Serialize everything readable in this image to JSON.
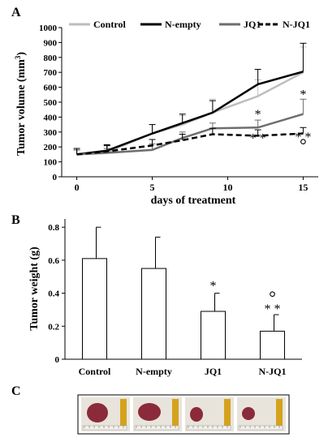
{
  "panel_labels": {
    "a": "A",
    "b": "B",
    "c": "C"
  },
  "chart_data": [
    {
      "type": "line",
      "ylabel_main": "Tumor volume (mm",
      "ylabel_sup": "3",
      "ylabel_end": ")",
      "xlabel": "days of treatment",
      "ylim": [
        0,
        1000
      ],
      "xlim": [
        -1,
        16
      ],
      "yticks": [
        0,
        100,
        200,
        300,
        400,
        500,
        600,
        700,
        800,
        900,
        1000
      ],
      "xticks": [
        0,
        5,
        10,
        15
      ],
      "series": [
        {
          "name": "Control",
          "color": "#bdbdbd",
          "dash": "solid",
          "x": [
            0,
            2,
            5,
            7,
            9,
            12,
            15
          ],
          "y": [
            150,
            165,
            290,
            350,
            430,
            540,
            700
          ],
          "err": [
            30,
            40,
            60,
            60,
            90,
            110,
            170
          ]
        },
        {
          "name": "N-empty",
          "color": "#000000",
          "dash": "solid",
          "x": [
            0,
            2,
            5,
            7,
            9,
            12,
            15
          ],
          "y": [
            150,
            175,
            290,
            360,
            430,
            620,
            705
          ],
          "err": [
            30,
            40,
            60,
            60,
            80,
            100,
            190
          ]
        },
        {
          "name": "JQ1",
          "color": "#6e6e6e",
          "dash": "solid",
          "x": [
            0,
            2,
            5,
            7,
            9,
            12,
            15
          ],
          "y": [
            150,
            160,
            180,
            260,
            325,
            330,
            420
          ],
          "err": [
            30,
            30,
            40,
            40,
            35,
            50,
            100
          ]
        },
        {
          "name": "N-JQ1",
          "color": "#000000",
          "dash": "dashed",
          "x": [
            0,
            2,
            5,
            7,
            9,
            12,
            15
          ],
          "y": [
            150,
            170,
            210,
            245,
            285,
            275,
            290
          ],
          "err": [
            40,
            40,
            40,
            40,
            40,
            40,
            40
          ]
        }
      ],
      "annotations": [
        {
          "text": "*",
          "x": 12,
          "y": 390
        },
        {
          "text": "* *",
          "x": 12,
          "y": 230
        },
        {
          "text": "*",
          "x": 15,
          "y": 525
        },
        {
          "text": "* *",
          "x": 15,
          "y": 240
        },
        {
          "text": "°",
          "x": 15,
          "y": 175
        }
      ]
    },
    {
      "type": "bar",
      "ylabel": "Tumor weight (g)",
      "categories": [
        "Control",
        "N-empty",
        "JQ1",
        "N-JQ1"
      ],
      "values": [
        0.61,
        0.55,
        0.29,
        0.17
      ],
      "err": [
        0.19,
        0.19,
        0.11,
        0.1
      ],
      "ylim": [
        0,
        0.85
      ],
      "yticks": [
        0,
        0.2,
        0.4,
        0.6,
        0.8
      ],
      "ytick_labels": [
        "0",
        "0.2",
        "0.4",
        "0.6",
        "0.8"
      ],
      "annotations": [
        {
          "text": "*",
          "category": "JQ1",
          "y": 0.42
        },
        {
          "text": "* *",
          "category": "N-JQ1",
          "y": 0.28
        },
        {
          "text": "°",
          "category": "N-JQ1",
          "y": 0.34
        }
      ]
    }
  ],
  "photos": {
    "count": 4,
    "bg": "#e8e4dc",
    "tumor_color": "#8b2a3a",
    "ruler_color": "#d4a21c"
  }
}
